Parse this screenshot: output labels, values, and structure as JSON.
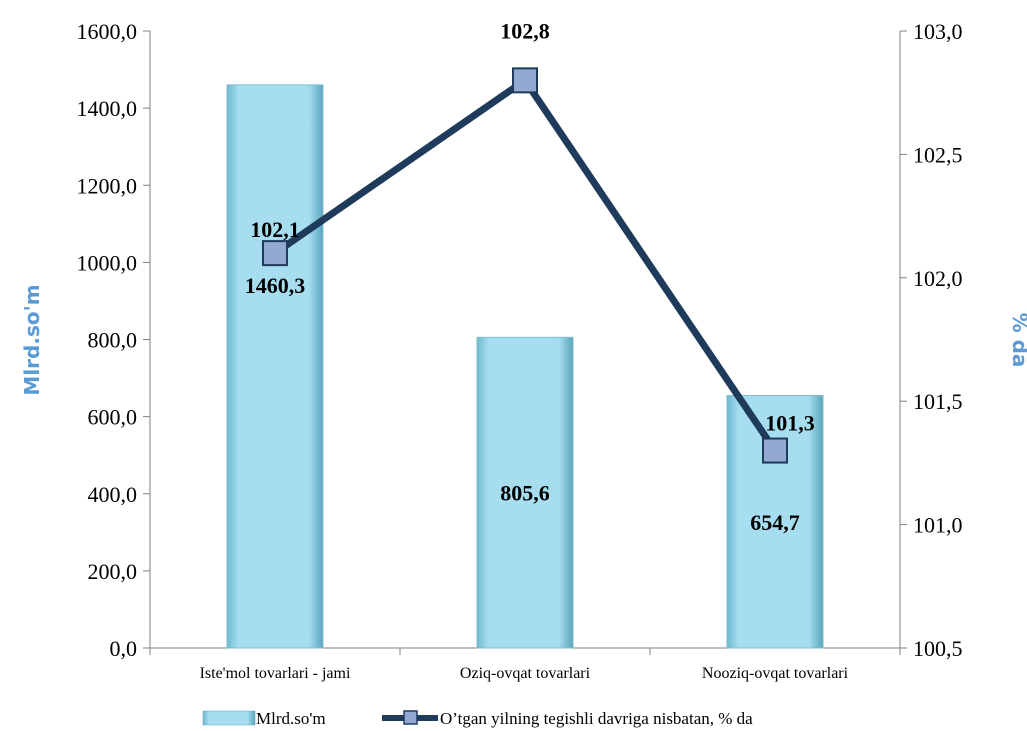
{
  "chart_data": {
    "type": "bar+line",
    "categories": [
      "Iste'mol tovarlari - jami",
      "Oziq-ovqat tovarlari",
      "Nooziq-ovqat tovarlari"
    ],
    "series": [
      {
        "name": "Mlrd.so'm",
        "type": "bar",
        "axis": "left",
        "values": [
          1460.3,
          805.6,
          654.7
        ],
        "labels": [
          "1460,3",
          "805,6",
          "654,7"
        ],
        "color": "#9ad8ea"
      },
      {
        "name": "O’tgan yilning tegishli davriga nisbatan, % da",
        "type": "line",
        "axis": "right",
        "values": [
          102.1,
          102.8,
          101.3
        ],
        "labels": [
          "102,1",
          "102,8",
          "101,3"
        ],
        "color": "#1f3b5c",
        "marker_color": "#93a9d2"
      }
    ],
    "ylabel": "Mlrd.so'm",
    "ylabel_right": "% da",
    "axis_title_color": "#5b9bd5",
    "ylim": [
      0,
      1600
    ],
    "ylim_right": [
      100.5,
      103.0
    ],
    "yticks": [
      "0,0",
      "200,0",
      "400,0",
      "600,0",
      "800,0",
      "1000,0",
      "1200,0",
      "1400,0",
      "1600,0"
    ],
    "yticks_right": [
      "100,5",
      "101,0",
      "101,5",
      "102,0",
      "102,5",
      "103,0"
    ],
    "grid": false,
    "legend_position": "bottom"
  }
}
